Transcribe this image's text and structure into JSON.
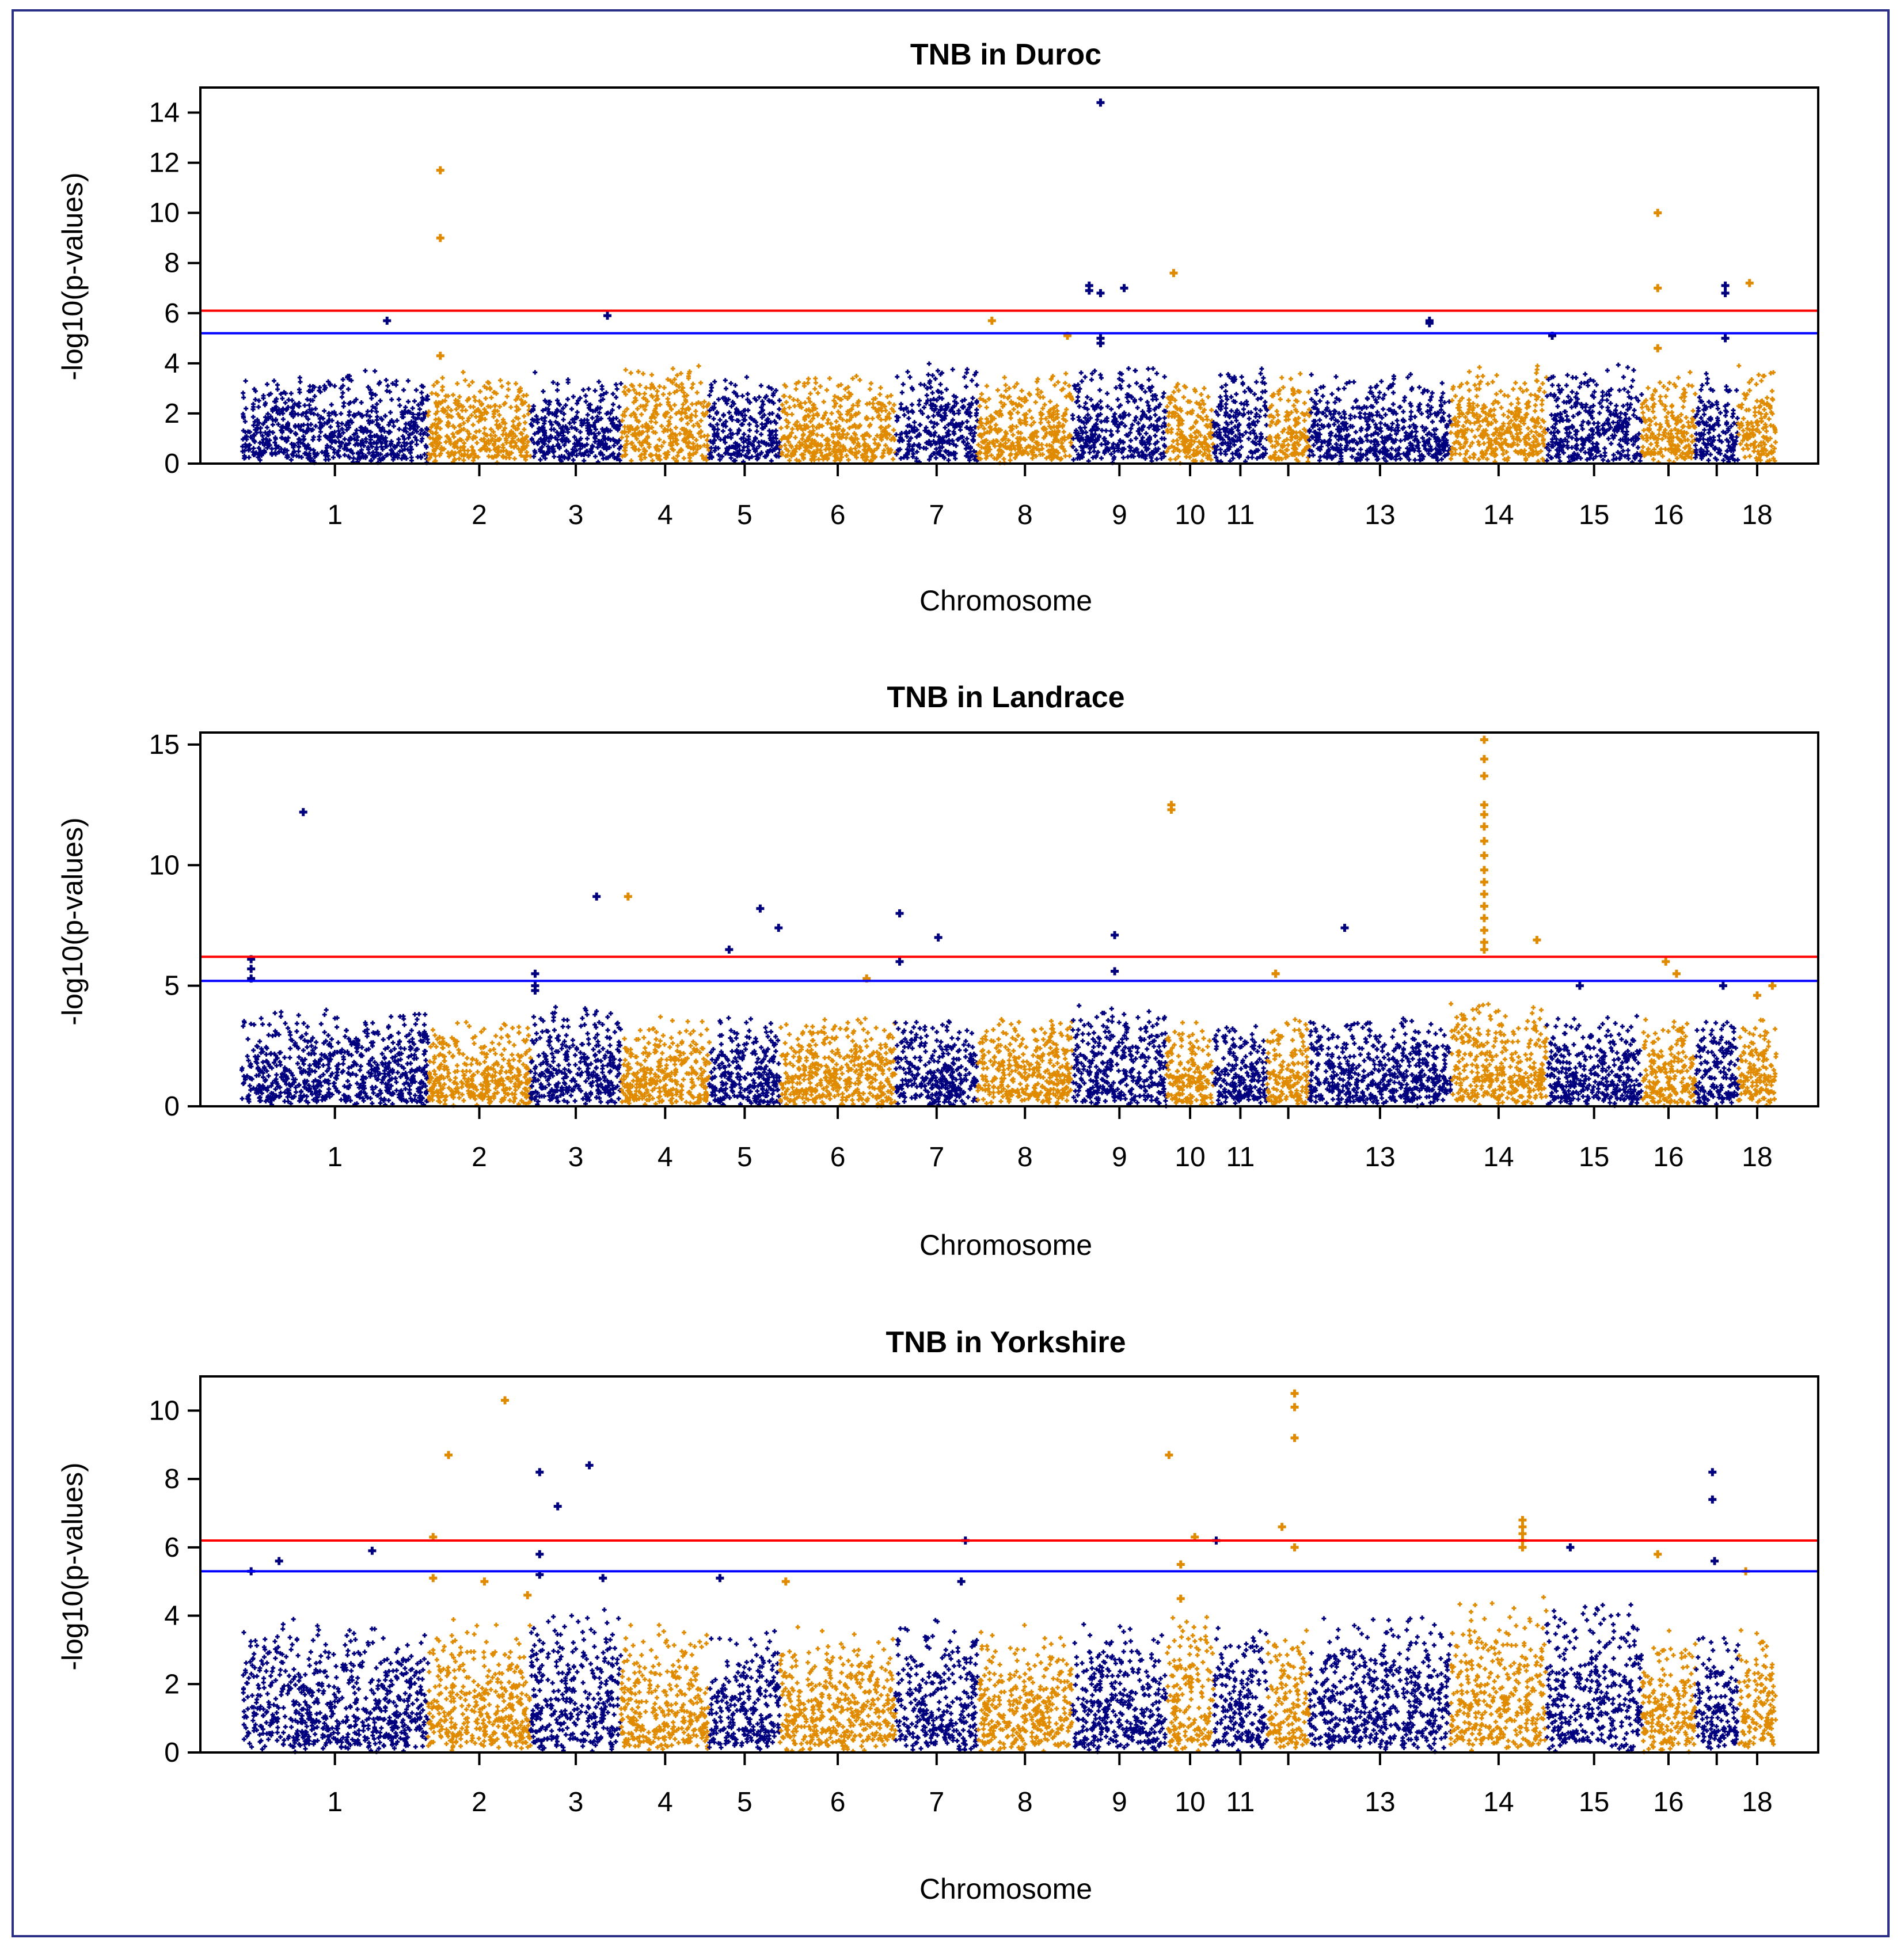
{
  "chart_data": [
    {
      "type": "scatter",
      "subtype": "manhattan",
      "title": "TNB in Duroc",
      "xlabel": "Chromosome",
      "ylabel": "-log10(p-values)",
      "ylim": [
        0,
        15
      ],
      "yticks": [
        0,
        2,
        4,
        6,
        8,
        10,
        12,
        14
      ],
      "threshold_lines": [
        {
          "value": 6.1,
          "color": "#ff0000"
        },
        {
          "value": 5.2,
          "color": "#0000ff"
        }
      ],
      "chromosomes": [
        "1",
        "2",
        "3",
        "4",
        "5",
        "6",
        "7",
        "8",
        "9",
        "10",
        "11",
        "12",
        "13",
        "14",
        "15",
        "16",
        "17",
        "18"
      ],
      "chromosome_tick_labels": [
        "1",
        "2",
        "3",
        "4",
        "5",
        "6",
        "7",
        "8",
        "9",
        "10",
        "11",
        "",
        "13",
        "14",
        "15",
        "16",
        "",
        "18"
      ],
      "chromosome_lengths": [
        274,
        151,
        133,
        130,
        104,
        170,
        121,
        139,
        139,
        69,
        79,
        62,
        208,
        141,
        140,
        79,
        63,
        56
      ],
      "background_max": [
        3.9,
        3.8,
        3.8,
        4.3,
        3.8,
        3.8,
        4.2,
        3.8,
        4.3,
        4.0,
        4.3,
        3.9,
        3.8,
        4.3,
        4.1,
        3.9,
        3.8,
        4.1
      ],
      "peaks": [
        {
          "chr": "1",
          "pos": 0.78,
          "values": [
            5.7
          ]
        },
        {
          "chr": "2",
          "pos": 0.12,
          "values": [
            11.7,
            9.0,
            4.3
          ]
        },
        {
          "chr": "3",
          "pos": 0.85,
          "values": [
            5.9
          ]
        },
        {
          "chr": "8",
          "pos": 0.15,
          "values": [
            5.7
          ]
        },
        {
          "chr": "8",
          "pos": 0.95,
          "values": [
            5.1
          ]
        },
        {
          "chr": "9",
          "pos": 0.18,
          "values": [
            7.1,
            6.9
          ]
        },
        {
          "chr": "9",
          "pos": 0.3,
          "values": [
            14.4,
            6.8,
            5.0,
            4.8
          ]
        },
        {
          "chr": "9",
          "pos": 0.55,
          "values": [
            7.0
          ]
        },
        {
          "chr": "10",
          "pos": 0.15,
          "values": [
            7.6
          ]
        },
        {
          "chr": "13",
          "pos": 0.85,
          "values": [
            5.7,
            5.6
          ]
        },
        {
          "chr": "15",
          "pos": 0.06,
          "values": [
            5.1
          ]
        },
        {
          "chr": "16",
          "pos": 0.3,
          "values": [
            10.0,
            7.0,
            4.6
          ]
        },
        {
          "chr": "17",
          "pos": 0.7,
          "values": [
            7.1,
            6.8,
            5.0
          ]
        },
        {
          "chr": "18",
          "pos": 0.3,
          "values": [
            7.2
          ]
        }
      ]
    },
    {
      "type": "scatter",
      "subtype": "manhattan",
      "title": "TNB in Landrace",
      "xlabel": "Chromosome",
      "ylabel": "-log10(p-values)",
      "ylim": [
        0,
        15.5
      ],
      "yticks": [
        0,
        5,
        10,
        15
      ],
      "threshold_lines": [
        {
          "value": 6.2,
          "color": "#ff0000"
        },
        {
          "value": 5.2,
          "color": "#0000ff"
        }
      ],
      "chromosomes": [
        "1",
        "2",
        "3",
        "4",
        "5",
        "6",
        "7",
        "8",
        "9",
        "10",
        "11",
        "12",
        "13",
        "14",
        "15",
        "16",
        "17",
        "18"
      ],
      "chromosome_tick_labels": [
        "1",
        "2",
        "3",
        "4",
        "5",
        "6",
        "7",
        "8",
        "9",
        "10",
        "11",
        "",
        "13",
        "14",
        "15",
        "16",
        "",
        "18"
      ],
      "chromosome_lengths": [
        274,
        151,
        133,
        130,
        104,
        170,
        121,
        139,
        139,
        69,
        79,
        62,
        208,
        141,
        140,
        79,
        63,
        56
      ],
      "background_max": [
        4.3,
        3.9,
        4.6,
        3.9,
        3.9,
        4.0,
        4.0,
        4.0,
        4.6,
        3.9,
        3.9,
        3.9,
        4.0,
        4.8,
        4.0,
        3.9,
        4.0,
        3.9
      ],
      "peaks": [
        {
          "chr": "1",
          "pos": 0.05,
          "values": [
            6.1,
            5.7,
            5.3
          ]
        },
        {
          "chr": "1",
          "pos": 0.33,
          "values": [
            12.2
          ]
        },
        {
          "chr": "3",
          "pos": 0.05,
          "values": [
            5.5,
            5.0,
            4.8
          ]
        },
        {
          "chr": "3",
          "pos": 0.73,
          "values": [
            8.7
          ]
        },
        {
          "chr": "4",
          "pos": 0.08,
          "values": [
            8.7
          ]
        },
        {
          "chr": "5",
          "pos": 0.28,
          "values": [
            6.5
          ]
        },
        {
          "chr": "5",
          "pos": 0.72,
          "values": [
            8.2
          ]
        },
        {
          "chr": "5",
          "pos": 0.98,
          "values": [
            7.4
          ]
        },
        {
          "chr": "6",
          "pos": 0.75,
          "values": [
            5.3
          ]
        },
        {
          "chr": "7",
          "pos": 0.05,
          "values": [
            8.0,
            6.0
          ]
        },
        {
          "chr": "7",
          "pos": 0.52,
          "values": [
            7.0
          ]
        },
        {
          "chr": "9",
          "pos": 0.45,
          "values": [
            7.1,
            5.6
          ]
        },
        {
          "chr": "10",
          "pos": 0.1,
          "values": [
            12.5,
            12.3
          ]
        },
        {
          "chr": "12",
          "pos": 0.2,
          "values": [
            5.5,
            5.5
          ]
        },
        {
          "chr": "13",
          "pos": 0.25,
          "values": [
            7.4
          ]
        },
        {
          "chr": "14",
          "pos": 0.35,
          "values": [
            15.2,
            14.4,
            13.7,
            12.5,
            12.1,
            11.6,
            11.0,
            10.4,
            9.8,
            9.3,
            8.8,
            8.3,
            7.8,
            7.3,
            6.8,
            6.5
          ]
        },
        {
          "chr": "14",
          "pos": 0.9,
          "values": [
            6.9
          ]
        },
        {
          "chr": "15",
          "pos": 0.35,
          "values": [
            5.0
          ]
        },
        {
          "chr": "16",
          "pos": 0.45,
          "values": [
            6.0
          ]
        },
        {
          "chr": "16",
          "pos": 0.65,
          "values": [
            5.5
          ]
        },
        {
          "chr": "17",
          "pos": 0.65,
          "values": [
            5.0
          ]
        },
        {
          "chr": "18",
          "pos": 0.5,
          "values": [
            4.6
          ]
        },
        {
          "chr": "18",
          "pos": 0.9,
          "values": [
            5.0
          ]
        }
      ]
    },
    {
      "type": "scatter",
      "subtype": "manhattan",
      "title": "TNB in Yorkshire",
      "xlabel": "Chromosome",
      "ylabel": "-log10(p-values)",
      "ylim": [
        0,
        11
      ],
      "yticks": [
        0,
        2,
        4,
        6,
        8,
        10
      ],
      "threshold_lines": [
        {
          "value": 6.2,
          "color": "#ff0000"
        },
        {
          "value": 5.3,
          "color": "#0000ff"
        }
      ],
      "chromosomes": [
        "1",
        "2",
        "3",
        "4",
        "5",
        "6",
        "7",
        "8",
        "9",
        "10",
        "11",
        "12",
        "13",
        "14",
        "15",
        "16",
        "17",
        "18"
      ],
      "chromosome_tick_labels": [
        "1",
        "2",
        "3",
        "4",
        "5",
        "6",
        "7",
        "8",
        "9",
        "10",
        "11",
        "",
        "13",
        "14",
        "15",
        "16",
        "",
        "18"
      ],
      "chromosome_lengths": [
        274,
        151,
        133,
        130,
        104,
        170,
        121,
        139,
        139,
        69,
        79,
        62,
        208,
        141,
        140,
        79,
        63,
        56
      ],
      "background_max": [
        4.1,
        4.0,
        4.6,
        3.9,
        3.9,
        3.9,
        4.1,
        3.9,
        3.9,
        4.4,
        4.0,
        3.9,
        4.3,
        4.8,
        4.7,
        3.9,
        3.9,
        3.9
      ],
      "peaks": [
        {
          "chr": "1",
          "pos": 0.05,
          "values": [
            5.3
          ]
        },
        {
          "chr": "1",
          "pos": 0.2,
          "values": [
            5.6
          ]
        },
        {
          "chr": "1",
          "pos": 0.7,
          "values": [
            5.9
          ]
        },
        {
          "chr": "2",
          "pos": 0.05,
          "values": [
            6.3,
            5.1
          ]
        },
        {
          "chr": "2",
          "pos": 0.2,
          "values": [
            8.7
          ]
        },
        {
          "chr": "2",
          "pos": 0.55,
          "values": [
            5.0
          ]
        },
        {
          "chr": "2",
          "pos": 0.75,
          "values": [
            10.3
          ]
        },
        {
          "chr": "2",
          "pos": 0.97,
          "values": [
            4.6
          ]
        },
        {
          "chr": "3",
          "pos": 0.1,
          "values": [
            8.2,
            5.8,
            5.2
          ]
        },
        {
          "chr": "3",
          "pos": 0.3,
          "values": [
            7.2
          ]
        },
        {
          "chr": "3",
          "pos": 0.65,
          "values": [
            8.4
          ]
        },
        {
          "chr": "3",
          "pos": 0.8,
          "values": [
            5.1
          ]
        },
        {
          "chr": "5",
          "pos": 0.15,
          "values": [
            5.1
          ]
        },
        {
          "chr": "6",
          "pos": 0.05,
          "values": [
            5.0
          ]
        },
        {
          "chr": "7",
          "pos": 0.85,
          "values": [
            6.2
          ]
        },
        {
          "chr": "7",
          "pos": 0.8,
          "values": [
            5.0
          ]
        },
        {
          "chr": "10",
          "pos": 0.05,
          "values": [
            8.7
          ]
        },
        {
          "chr": "10",
          "pos": 0.3,
          "values": [
            5.5,
            4.5
          ]
        },
        {
          "chr": "10",
          "pos": 0.6,
          "values": [
            6.3
          ]
        },
        {
          "chr": "11",
          "pos": 0.05,
          "values": [
            6.2
          ]
        },
        {
          "chr": "12",
          "pos": 0.35,
          "values": [
            6.6
          ]
        },
        {
          "chr": "12",
          "pos": 0.65,
          "values": [
            10.5,
            10.1,
            9.2,
            6.0
          ]
        },
        {
          "chr": "14",
          "pos": 0.75,
          "values": [
            6.8,
            6.6,
            6.4,
            6.2,
            6.0
          ]
        },
        {
          "chr": "15",
          "pos": 0.25,
          "values": [
            6.0
          ]
        },
        {
          "chr": "16",
          "pos": 0.3,
          "values": [
            5.8
          ]
        },
        {
          "chr": "17",
          "pos": 0.4,
          "values": [
            8.2,
            7.4
          ]
        },
        {
          "chr": "17",
          "pos": 0.45,
          "values": [
            5.6
          ]
        },
        {
          "chr": "18",
          "pos": 0.2,
          "values": [
            5.3
          ]
        }
      ]
    }
  ],
  "colors": {
    "odd_chromosome": "#00007f",
    "even_chromosome": "#e08a00",
    "frame": "#2b2f86"
  }
}
